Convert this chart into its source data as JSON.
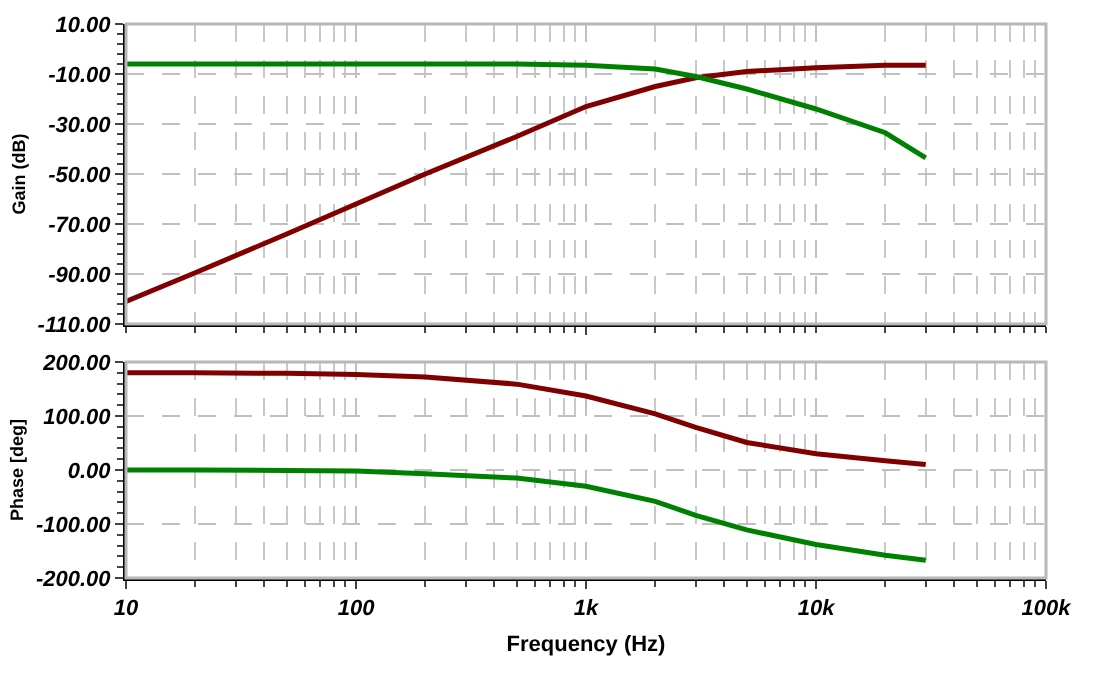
{
  "chart_data": [
    {
      "type": "line",
      "ylabel": "Gain (dB)",
      "log": "x",
      "grid": true,
      "tick_labels": "y",
      "x": [
        10,
        20,
        50,
        100,
        200,
        500,
        1000,
        2000,
        3000,
        5000,
        10000,
        20000,
        30000
      ],
      "xlim": [
        10,
        100000
      ],
      "xticks": [
        {
          "value": 10,
          "label": null
        },
        {
          "value": 100,
          "label": null
        },
        {
          "value": 1000,
          "label": null
        },
        {
          "value": 10000,
          "label": null
        },
        {
          "value": 100000,
          "label": null
        }
      ],
      "ylim": [
        -110,
        10
      ],
      "yticks": [
        {
          "value": 10,
          "label": "10.00"
        },
        {
          "value": -10,
          "label": "-10.00"
        },
        {
          "value": -30,
          "label": "-30.00"
        },
        {
          "value": -50,
          "label": "-50.00"
        },
        {
          "value": -70,
          "label": "-70.00"
        },
        {
          "value": -90,
          "label": "-90.00"
        },
        {
          "value": -110,
          "label": "-110.00"
        }
      ],
      "series": [
        {
          "color": "#800000",
          "values": [
            -101,
            -89.5,
            -74,
            -62,
            -50,
            -35,
            -23,
            -15,
            -11.5,
            -9,
            -7.5,
            -6.5,
            -6.5
          ]
        },
        {
          "color": "#008000",
          "values": [
            -6,
            -6,
            -6,
            -6,
            -6,
            -6,
            -6.5,
            -8,
            -11,
            -16,
            -24,
            -33.5,
            -43.5
          ]
        }
      ]
    },
    {
      "type": "line",
      "xlabel": "Frequency (Hz)",
      "ylabel": "Phase [deg]",
      "log": "x",
      "grid": true,
      "x": [
        10,
        20,
        50,
        100,
        200,
        500,
        1000,
        2000,
        3000,
        5000,
        10000,
        20000,
        30000
      ],
      "xlim": [
        10,
        100000
      ],
      "xticks": [
        10,
        100,
        {
          "value": 1000,
          "label": "1k"
        },
        {
          "value": 10000,
          "label": "10k"
        },
        {
          "value": 100000,
          "label": "100k"
        }
      ],
      "ylim": [
        -200,
        200
      ],
      "yticks": [
        {
          "value": 200,
          "label": "200.00"
        },
        {
          "value": 100,
          "label": "100.00"
        },
        {
          "value": 0,
          "label": "0.00"
        },
        {
          "value": -100,
          "label": "-100.00"
        },
        {
          "value": -200,
          "label": "-200.00"
        }
      ],
      "series": [
        {
          "color": "#800000",
          "values": [
            180,
            180,
            179,
            177,
            172,
            159,
            137,
            104,
            79,
            51,
            30,
            17,
            10
          ]
        },
        {
          "color": "#008000",
          "values": [
            0,
            0,
            -1,
            -2,
            -7,
            -15,
            -30,
            -58,
            -84,
            -111,
            -138,
            -158,
            -167
          ]
        }
      ]
    }
  ]
}
